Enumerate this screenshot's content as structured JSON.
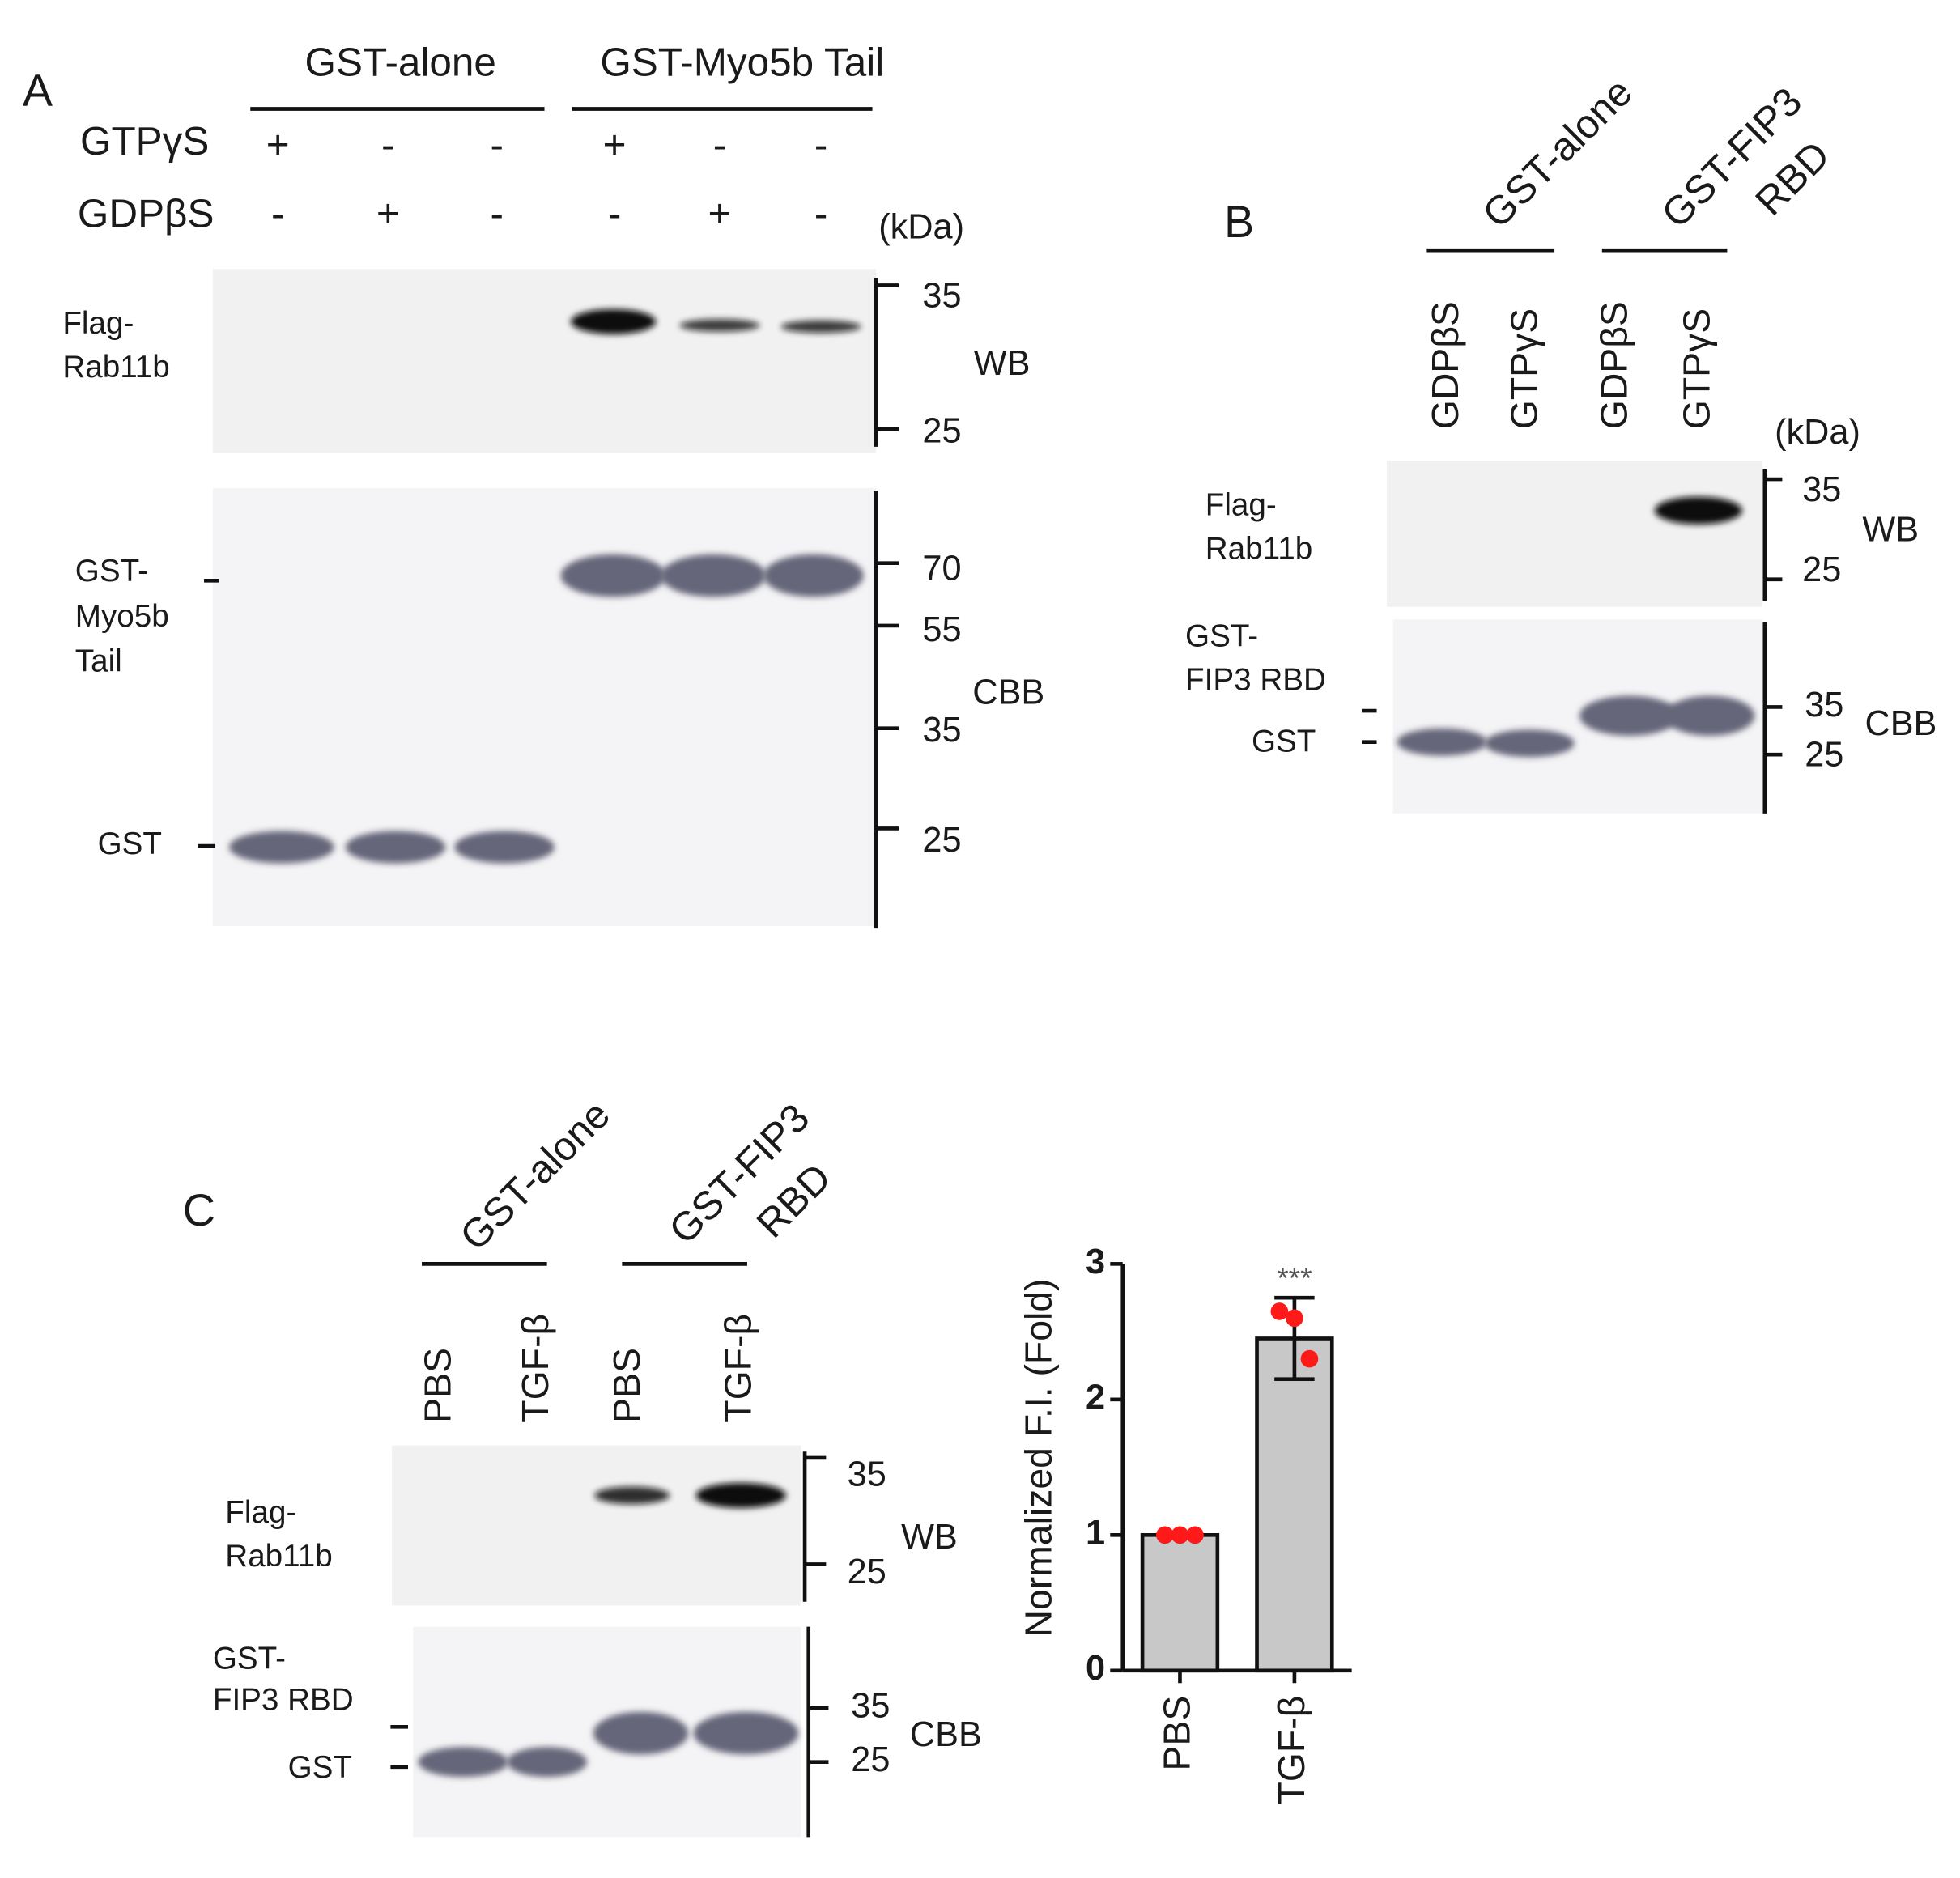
{
  "panel_a": {
    "label": "A",
    "groups": [
      "GST-alone",
      "GST-Myo5b Tail"
    ],
    "rows": [
      {
        "name": "GTPγS",
        "signs": [
          "+",
          "-",
          "-",
          "+",
          "-",
          "-"
        ]
      },
      {
        "name": "GDPβS",
        "signs": [
          "-",
          "+",
          "-",
          "-",
          "+",
          "-"
        ]
      }
    ],
    "unit": "(kDa)",
    "wb": {
      "protein": [
        "Flag-",
        "Rab11b"
      ],
      "markers": [
        "35",
        "25"
      ],
      "label": "WB"
    },
    "cbb": {
      "proteins": [
        [
          "GST-",
          "Myo5b",
          "Tail"
        ],
        [
          "GST"
        ]
      ],
      "markers": [
        "70",
        "55",
        "35",
        "25"
      ],
      "label": "CBB"
    }
  },
  "panel_b": {
    "label": "B",
    "groups": [
      [
        "GST-alone"
      ],
      [
        "GST-FIP3",
        "RBD"
      ]
    ],
    "lanes": [
      "GDPβS",
      "GTPγS",
      "GDPβS",
      "GTPγS"
    ],
    "unit": "(kDa)",
    "wb": {
      "protein": [
        "Flag-",
        "Rab11b"
      ],
      "markers": [
        "35",
        "25"
      ],
      "label": "WB"
    },
    "cbb": {
      "proteins": [
        [
          "GST-",
          "FIP3 RBD"
        ],
        [
          "GST"
        ]
      ],
      "markers": [
        "35",
        "25"
      ],
      "label": "CBB"
    }
  },
  "panel_c": {
    "label": "C",
    "groups": [
      [
        "GST-alone"
      ],
      [
        "GST-FIP3",
        "RBD"
      ]
    ],
    "lanes": [
      "PBS",
      "TGF-β",
      "PBS",
      "TGF-β"
    ],
    "wb": {
      "protein": [
        "Flag-",
        "Rab11b"
      ],
      "markers": [
        "35",
        "25"
      ],
      "label": "WB"
    },
    "cbb": {
      "proteins": [
        [
          "GST-",
          "FIP3 RBD"
        ],
        [
          "GST"
        ]
      ],
      "markers": [
        "35",
        "25"
      ],
      "label": "CBB"
    }
  },
  "chart_data": {
    "type": "bar",
    "y_label": "Normalized F.I. (Fold)",
    "categories": [
      "PBS",
      "TGF-β"
    ],
    "values": [
      1,
      2.45
    ],
    "errors": [
      0,
      0.3
    ],
    "points": [
      [
        1,
        1,
        1
      ],
      [
        2.65,
        2.6,
        2.3
      ]
    ],
    "color": "#c8c8c8",
    "point_color": "#ff1a1a",
    "annotation": "***",
    "ylim": [
      0,
      3
    ],
    "yticks": [
      0,
      1,
      2,
      3
    ]
  }
}
